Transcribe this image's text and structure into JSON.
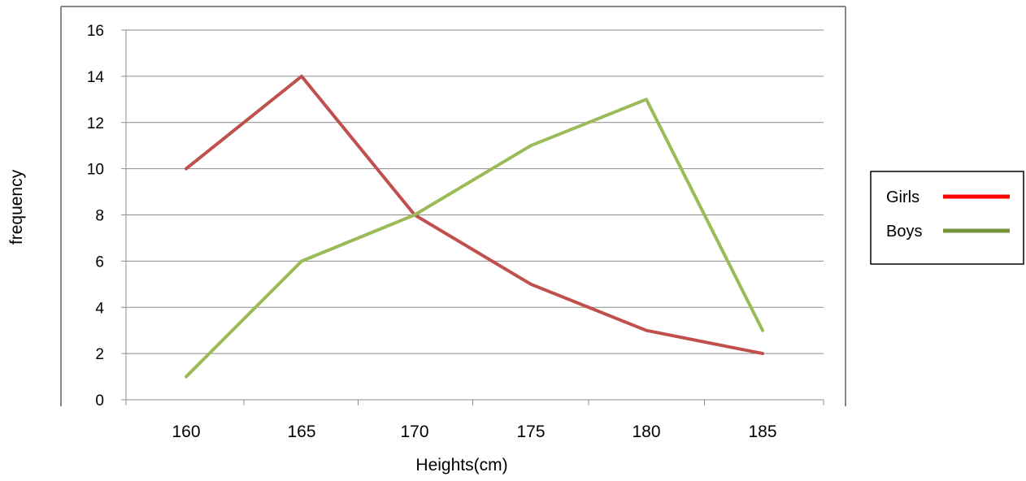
{
  "chart_data": {
    "type": "line",
    "xlabel": "Heights(cm)",
    "ylabel": "frequency",
    "categories": [
      "160",
      "165",
      "170",
      "175",
      "180",
      "185"
    ],
    "ylim": [
      0,
      16
    ],
    "yticks": [
      0,
      2,
      4,
      6,
      8,
      10,
      12,
      14,
      16
    ],
    "grid": true,
    "legend_position": "right",
    "series": [
      {
        "name": "Girls",
        "values": [
          10,
          14,
          8,
          5,
          3,
          2
        ],
        "line_color": "#C0504D",
        "legend_color": "#FF0000"
      },
      {
        "name": "Boys",
        "values": [
          1,
          6,
          8,
          11,
          13,
          3
        ],
        "line_color": "#9BBB59",
        "legend_color": "#77933C"
      }
    ]
  }
}
